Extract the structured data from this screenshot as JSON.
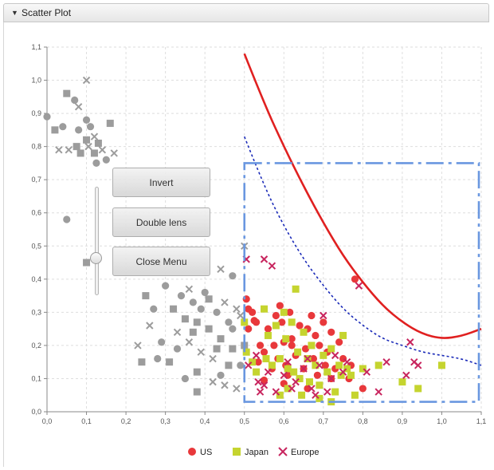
{
  "pane": {
    "title": "Scatter Plot",
    "expanded_icon": "triangle-down-icon"
  },
  "menu": {
    "buttons": [
      {
        "label": "Invert"
      },
      {
        "label": "Double lens"
      },
      {
        "label": "Close Menu"
      }
    ],
    "slider_value": 0.4
  },
  "legend": [
    {
      "label": "US",
      "symbol": "circle",
      "color": "#e8383b"
    },
    {
      "label": "Japan",
      "symbol": "square",
      "color": "#c5d42f"
    },
    {
      "label": "Europe",
      "symbol": "cross",
      "color": "#c8255e"
    }
  ],
  "chart_data": {
    "type": "scatter",
    "xlim": [
      0,
      1.1
    ],
    "ylim": [
      0,
      1.1
    ],
    "x_ticks": [
      "0,0",
      "0,1",
      "0,2",
      "0,3",
      "0,4",
      "0,5",
      "0,6",
      "0,7",
      "0,8",
      "0,9",
      "1,0",
      "1,1"
    ],
    "y_ticks": [
      "0,0",
      "0,1",
      "0,2",
      "0,3",
      "0,4",
      "0,5",
      "0,6",
      "0,7",
      "0,8",
      "0,9",
      "1,0",
      "1,1"
    ],
    "grid": true,
    "legend_position": "bottom",
    "lens_region": {
      "x": [
        0.5,
        1.1
      ],
      "y": [
        0.03,
        0.75
      ]
    },
    "gray_color": "#9c9c9c",
    "series": [
      {
        "name": "US",
        "color": "#e8383b",
        "points": [
          [
            0.505,
            0.34
          ],
          [
            0.51,
            0.31
          ],
          [
            0.51,
            0.25
          ],
          [
            0.52,
            0.3
          ],
          [
            0.525,
            0.275
          ],
          [
            0.53,
            0.27
          ],
          [
            0.54,
            0.2
          ],
          [
            0.535,
            0.15
          ],
          [
            0.55,
            0.18
          ],
          [
            0.56,
            0.25
          ],
          [
            0.57,
            0.13
          ],
          [
            0.575,
            0.2
          ],
          [
            0.58,
            0.29
          ],
          [
            0.585,
            0.16
          ],
          [
            0.59,
            0.32
          ],
          [
            0.595,
            0.27
          ],
          [
            0.6,
            0.21
          ],
          [
            0.605,
            0.14
          ],
          [
            0.61,
            0.11
          ],
          [
            0.615,
            0.3
          ],
          [
            0.62,
            0.22
          ],
          [
            0.63,
            0.17
          ],
          [
            0.64,
            0.26
          ],
          [
            0.65,
            0.13
          ],
          [
            0.655,
            0.19
          ],
          [
            0.66,
            0.25
          ],
          [
            0.67,
            0.29
          ],
          [
            0.675,
            0.16
          ],
          [
            0.68,
            0.23
          ],
          [
            0.685,
            0.11
          ],
          [
            0.69,
            0.2
          ],
          [
            0.7,
            0.27
          ],
          [
            0.705,
            0.14
          ],
          [
            0.71,
            0.18
          ],
          [
            0.72,
            0.24
          ],
          [
            0.73,
            0.13
          ],
          [
            0.74,
            0.21
          ],
          [
            0.75,
            0.16
          ],
          [
            0.765,
            0.1
          ],
          [
            0.77,
            0.14
          ],
          [
            0.78,
            0.4
          ],
          [
            0.8,
            0.07
          ],
          [
            0.55,
            0.095
          ],
          [
            0.6,
            0.085
          ],
          [
            0.62,
            0.2
          ],
          [
            0.64,
            0.1
          ],
          [
            0.66,
            0.07
          ],
          [
            0.72,
            0.1
          ]
        ]
      },
      {
        "name": "Japan",
        "color": "#c5d42f",
        "points": [
          [
            0.5,
            0.27
          ],
          [
            0.505,
            0.18
          ],
          [
            0.52,
            0.15
          ],
          [
            0.53,
            0.12
          ],
          [
            0.55,
            0.31
          ],
          [
            0.555,
            0.16
          ],
          [
            0.56,
            0.23
          ],
          [
            0.57,
            0.14
          ],
          [
            0.58,
            0.26
          ],
          [
            0.59,
            0.16
          ],
          [
            0.6,
            0.3
          ],
          [
            0.605,
            0.22
          ],
          [
            0.61,
            0.13
          ],
          [
            0.62,
            0.27
          ],
          [
            0.625,
            0.12
          ],
          [
            0.63,
            0.37
          ],
          [
            0.635,
            0.18
          ],
          [
            0.64,
            0.1
          ],
          [
            0.65,
            0.24
          ],
          [
            0.66,
            0.16
          ],
          [
            0.665,
            0.09
          ],
          [
            0.67,
            0.2
          ],
          [
            0.68,
            0.14
          ],
          [
            0.69,
            0.08
          ],
          [
            0.7,
            0.17
          ],
          [
            0.71,
            0.12
          ],
          [
            0.72,
            0.19
          ],
          [
            0.73,
            0.06
          ],
          [
            0.74,
            0.14
          ],
          [
            0.745,
            0.11
          ],
          [
            0.75,
            0.23
          ],
          [
            0.76,
            0.13
          ],
          [
            0.77,
            0.11
          ],
          [
            0.78,
            0.05
          ],
          [
            0.8,
            0.13
          ],
          [
            0.84,
            0.14
          ],
          [
            0.9,
            0.09
          ],
          [
            0.94,
            0.07
          ],
          [
            1.0,
            0.14
          ],
          [
            0.59,
            0.05
          ],
          [
            0.61,
            0.07
          ],
          [
            0.645,
            0.05
          ],
          [
            0.69,
            0.04
          ],
          [
            0.72,
            0.03
          ]
        ]
      },
      {
        "name": "Europe",
        "color": "#c8255e",
        "points": [
          [
            0.505,
            0.46
          ],
          [
            0.55,
            0.46
          ],
          [
            0.57,
            0.44
          ],
          [
            0.51,
            0.14
          ],
          [
            0.53,
            0.17
          ],
          [
            0.535,
            0.09
          ],
          [
            0.54,
            0.06
          ],
          [
            0.55,
            0.08
          ],
          [
            0.56,
            0.12
          ],
          [
            0.58,
            0.06
          ],
          [
            0.6,
            0.11
          ],
          [
            0.61,
            0.15
          ],
          [
            0.63,
            0.09
          ],
          [
            0.65,
            0.13
          ],
          [
            0.66,
            0.16
          ],
          [
            0.67,
            0.07
          ],
          [
            0.69,
            0.14
          ],
          [
            0.7,
            0.29
          ],
          [
            0.71,
            0.06
          ],
          [
            0.72,
            0.1
          ],
          [
            0.73,
            0.17
          ],
          [
            0.75,
            0.12
          ],
          [
            0.76,
            0.15
          ],
          [
            0.79,
            0.38
          ],
          [
            0.81,
            0.12
          ],
          [
            0.84,
            0.06
          ],
          [
            0.86,
            0.15
          ],
          [
            0.91,
            0.11
          ],
          [
            0.92,
            0.21
          ],
          [
            0.93,
            0.15
          ],
          [
            0.94,
            0.14
          ],
          [
            0.62,
            0.07
          ],
          [
            0.68,
            0.05
          ]
        ]
      },
      {
        "name": "",
        "color": "#9c9c9c",
        "points": [
          [
            0.0,
            0.89
          ],
          [
            0.02,
            0.85
          ],
          [
            0.03,
            0.79
          ],
          [
            0.04,
            0.86
          ],
          [
            0.05,
            0.96
          ],
          [
            0.055,
            0.79
          ],
          [
            0.07,
            0.94
          ],
          [
            0.075,
            0.8
          ],
          [
            0.08,
            0.92
          ],
          [
            0.08,
            0.85
          ],
          [
            0.085,
            0.78
          ],
          [
            0.1,
            1.0
          ],
          [
            0.1,
            0.88
          ],
          [
            0.1,
            0.82
          ],
          [
            0.105,
            0.8
          ],
          [
            0.11,
            0.86
          ],
          [
            0.12,
            0.78
          ],
          [
            0.12,
            0.83
          ],
          [
            0.125,
            0.75
          ],
          [
            0.13,
            0.81
          ],
          [
            0.14,
            0.79
          ],
          [
            0.15,
            0.76
          ],
          [
            0.16,
            0.87
          ],
          [
            0.17,
            0.78
          ],
          [
            0.05,
            0.58
          ],
          [
            0.1,
            0.45
          ],
          [
            0.28,
            0.45
          ],
          [
            0.3,
            0.38
          ],
          [
            0.32,
            0.31
          ],
          [
            0.33,
            0.24
          ],
          [
            0.34,
            0.35
          ],
          [
            0.35,
            0.28
          ],
          [
            0.36,
            0.21
          ],
          [
            0.37,
            0.33
          ],
          [
            0.38,
            0.27
          ],
          [
            0.39,
            0.18
          ],
          [
            0.4,
            0.36
          ],
          [
            0.41,
            0.25
          ],
          [
            0.42,
            0.16
          ],
          [
            0.43,
            0.3
          ],
          [
            0.44,
            0.22
          ],
          [
            0.45,
            0.33
          ],
          [
            0.46,
            0.27
          ],
          [
            0.47,
            0.19
          ],
          [
            0.48,
            0.31
          ],
          [
            0.49,
            0.14
          ],
          [
            0.5,
            0.2
          ],
          [
            0.5,
            0.5
          ],
          [
            0.29,
            0.21
          ],
          [
            0.31,
            0.15
          ],
          [
            0.26,
            0.26
          ],
          [
            0.27,
            0.31
          ],
          [
            0.24,
            0.15
          ],
          [
            0.23,
            0.2
          ],
          [
            0.44,
            0.11
          ],
          [
            0.46,
            0.14
          ],
          [
            0.48,
            0.07
          ],
          [
            0.35,
            0.1
          ],
          [
            0.38,
            0.12
          ],
          [
            0.42,
            0.09
          ],
          [
            0.39,
            0.31
          ],
          [
            0.43,
            0.19
          ],
          [
            0.45,
            0.08
          ],
          [
            0.47,
            0.25
          ],
          [
            0.41,
            0.34
          ],
          [
            0.36,
            0.37
          ],
          [
            0.28,
            0.16
          ],
          [
            0.25,
            0.35
          ],
          [
            0.49,
            0.29
          ],
          [
            0.33,
            0.19
          ],
          [
            0.37,
            0.24
          ],
          [
            0.44,
            0.43
          ],
          [
            0.47,
            0.41
          ],
          [
            0.38,
            0.06
          ]
        ]
      }
    ],
    "curves": [
      {
        "name": "",
        "color": "#e02020",
        "style": "solid",
        "points": [
          [
            0.5,
            1.08
          ],
          [
            0.55,
            0.93
          ],
          [
            0.6,
            0.8
          ],
          [
            0.65,
            0.68
          ],
          [
            0.7,
            0.57
          ],
          [
            0.75,
            0.47
          ],
          [
            0.8,
            0.39
          ],
          [
            0.85,
            0.32
          ],
          [
            0.9,
            0.27
          ],
          [
            0.95,
            0.235
          ],
          [
            1.0,
            0.22
          ],
          [
            1.05,
            0.228
          ],
          [
            1.1,
            0.25
          ]
        ]
      },
      {
        "name": "",
        "color": "#1a2ab8",
        "style": "dotted",
        "points": [
          [
            0.5,
            0.83
          ],
          [
            0.55,
            0.68
          ],
          [
            0.6,
            0.56
          ],
          [
            0.65,
            0.46
          ],
          [
            0.7,
            0.38
          ],
          [
            0.75,
            0.31
          ],
          [
            0.8,
            0.26
          ],
          [
            0.85,
            0.22
          ],
          [
            0.9,
            0.2
          ],
          [
            0.95,
            0.18
          ],
          [
            1.0,
            0.17
          ],
          [
            1.05,
            0.16
          ],
          [
            1.1,
            0.14
          ]
        ]
      }
    ]
  }
}
